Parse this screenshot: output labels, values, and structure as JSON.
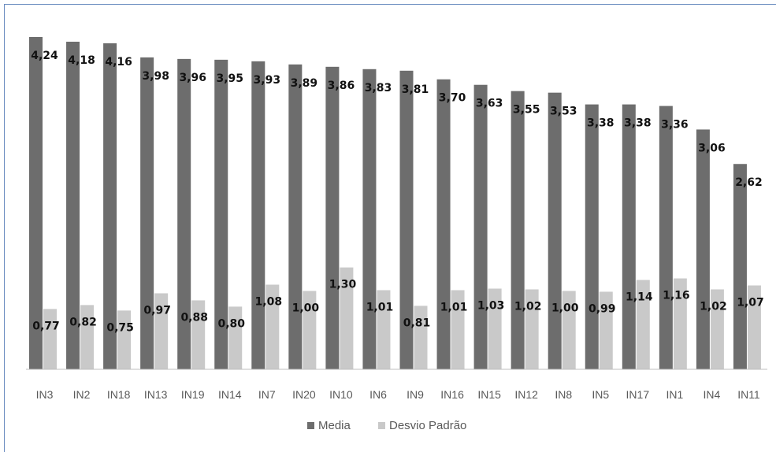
{
  "chart_data": {
    "type": "bar",
    "categories": [
      "IN3",
      "IN2",
      "IN18",
      "IN13",
      "IN19",
      "IN14",
      "IN7",
      "IN20",
      "IN10",
      "IN6",
      "IN9",
      "IN16",
      "IN15",
      "IN12",
      "IN8",
      "IN5",
      "IN17",
      "IN1",
      "IN4",
      "IN11"
    ],
    "series": [
      {
        "name": "Media",
        "color": "#6d6d6d",
        "values": [
          4.24,
          4.18,
          4.16,
          3.98,
          3.96,
          3.95,
          3.93,
          3.89,
          3.86,
          3.83,
          3.81,
          3.7,
          3.63,
          3.55,
          3.53,
          3.38,
          3.38,
          3.36,
          3.06,
          2.62
        ],
        "labels": [
          "4,24",
          "4,18",
          "4,16",
          "3,98",
          "3,96",
          "3,95",
          "3,93",
          "3,89",
          "3,86",
          "3,83",
          "3,81",
          "3,70",
          "3,63",
          "3,55",
          "3,53",
          "3,38",
          "3,38",
          "3,36",
          "3,06",
          "2,62"
        ]
      },
      {
        "name": "Desvio Padrão",
        "color": "#c9c9c9",
        "values": [
          0.77,
          0.82,
          0.75,
          0.97,
          0.88,
          0.8,
          1.08,
          1.0,
          1.3,
          1.01,
          0.81,
          1.01,
          1.03,
          1.02,
          1.0,
          0.99,
          1.14,
          1.16,
          1.02,
          1.07
        ],
        "labels": [
          "0,77",
          "0,82",
          "0,75",
          "0,97",
          "0,88",
          "0,80",
          "1,08",
          "1,00",
          "1,30",
          "1,01",
          "0,81",
          "1,01",
          "1,03",
          "1,02",
          "1,00",
          "0,99",
          "1,14",
          "1,16",
          "1,02",
          "1,07"
        ]
      }
    ],
    "title": "",
    "xlabel": "",
    "ylabel": "",
    "ylim": [
      0,
      4.24
    ],
    "grid": false,
    "legend_position": "bottom"
  }
}
